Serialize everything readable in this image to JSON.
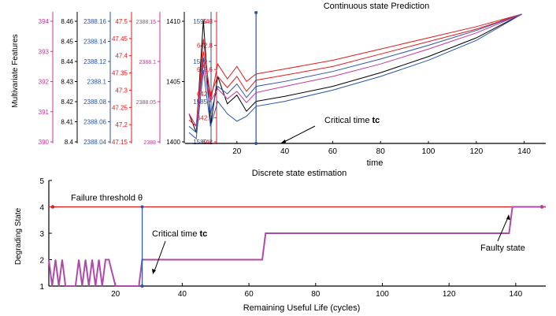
{
  "chart_data": [
    {
      "type": "line",
      "title": "Continuous state Prediction",
      "xlabel": "time",
      "ylabel": "Multivariate Features",
      "xlim": [
        0,
        149
      ],
      "x_ticks": [
        "20",
        "40",
        "60",
        "80",
        "100",
        "120",
        "140"
      ],
      "y_axes": [
        {
          "color": "#cc3399",
          "ticks": [
            "394",
            "393",
            "392",
            "391",
            "390"
          ]
        },
        {
          "color": "#000000",
          "ticks": [
            "8.46",
            "8.45",
            "8.44",
            "8.43",
            "8.42",
            "8.41",
            "8.4"
          ]
        },
        {
          "color": "#2a54a8",
          "ticks": [
            "2388.16",
            "2388.14",
            "2388.12",
            "2388.1",
            "2388.08",
            "2388.06",
            "2388.04"
          ]
        },
        {
          "color": "#e01b1b",
          "ticks": [
            "47.5",
            "47.45",
            "47.4",
            "47.35",
            "47.3",
            "47.25",
            "47.2",
            "47.15"
          ]
        },
        {
          "color": "#cc3399",
          "ticks": [
            "2388.15",
            "2388.1",
            "2388.05",
            "2388"
          ]
        },
        {
          "color": "#000000",
          "ticks": [
            "1410",
            "1405",
            "1400"
          ]
        },
        {
          "color": "#2a54a8",
          "ticks": [
            "1595",
            "1590",
            "1585",
            "1580"
          ]
        },
        {
          "color": "#e01b1b",
          "ticks": [
            "643",
            "642.8",
            "642.6",
            "642.4",
            "642.2",
            "642"
          ]
        }
      ],
      "critical_time": 28,
      "converge_x": 139,
      "series": [
        {
          "color": "#000000",
          "x": [
            0,
            3,
            6,
            9,
            12,
            16,
            20,
            24,
            28,
            40,
            60,
            80,
            100,
            120,
            139
          ],
          "y": [
            0.2,
            0.05,
            0.95,
            0.1,
            0.5,
            0.28,
            0.35,
            0.22,
            0.3,
            0.34,
            0.42,
            0.53,
            0.66,
            0.81,
            1.0
          ]
        },
        {
          "color": "#e01b1b",
          "x": [
            0,
            3,
            6,
            9,
            12,
            16,
            20,
            24,
            28,
            40,
            60,
            80,
            100,
            120,
            139
          ],
          "y": [
            0.15,
            0.1,
            0.8,
            0.3,
            0.6,
            0.48,
            0.58,
            0.46,
            0.52,
            0.56,
            0.63,
            0.72,
            0.81,
            0.9,
            1.0
          ]
        },
        {
          "color": "#e01b1b",
          "x": [
            0,
            3,
            6,
            9,
            12,
            16,
            20,
            24,
            28,
            40,
            60,
            80,
            100,
            120,
            139
          ],
          "y": [
            0.2,
            0.1,
            0.7,
            0.35,
            0.5,
            0.41,
            0.5,
            0.38,
            0.47,
            0.51,
            0.58,
            0.68,
            0.78,
            0.88,
            1.0
          ]
        },
        {
          "color": "#2a54a8",
          "x": [
            0,
            3,
            6,
            9,
            12,
            16,
            20,
            24,
            28,
            40,
            60,
            80,
            100,
            120,
            139
          ],
          "y": [
            0.1,
            0.05,
            0.65,
            0.2,
            0.42,
            0.36,
            0.44,
            0.33,
            0.42,
            0.46,
            0.54,
            0.64,
            0.75,
            0.87,
            1.0
          ]
        },
        {
          "color": "#cc3399",
          "x": [
            0,
            3,
            6,
            9,
            12,
            16,
            20,
            24,
            28,
            40,
            60,
            80,
            100,
            120,
            139
          ],
          "y": [
            0.2,
            0.1,
            0.6,
            0.3,
            0.4,
            0.32,
            0.38,
            0.29,
            0.37,
            0.42,
            0.5,
            0.6,
            0.72,
            0.85,
            1.0
          ]
        },
        {
          "color": "#2a54a8",
          "x": [
            0,
            3,
            6,
            9,
            12,
            16,
            20,
            24,
            28,
            40,
            60,
            80,
            100,
            120,
            139
          ],
          "y": [
            0.05,
            0.0,
            0.55,
            0.1,
            0.3,
            0.2,
            0.14,
            0.18,
            0.26,
            0.3,
            0.39,
            0.5,
            0.63,
            0.79,
            1.0
          ]
        }
      ],
      "annotations": {
        "critical_time": "Critical time",
        "critical_time_bold": "tc"
      }
    },
    {
      "type": "line",
      "title": "Discrete state estimation",
      "xlabel": "Remaining Useful Life (cycles)",
      "ylabel": "Degrading State",
      "xlim": [
        0,
        149
      ],
      "ylim": [
        1,
        5
      ],
      "x_ticks": [
        20,
        40,
        60,
        80,
        100,
        120,
        140
      ],
      "y_ticks": [
        1,
        2,
        3,
        4,
        5
      ],
      "threshold": {
        "value": 4,
        "label": "Failure threshold",
        "symbol": "θ",
        "color": "#e01b1b"
      },
      "critical_time": 28,
      "series": [
        {
          "name": "Degrading state",
          "color": "#b04aa8",
          "x": [
            0,
            1,
            2,
            3,
            4,
            5,
            6,
            7,
            8,
            9,
            10,
            11,
            12,
            13,
            14,
            15,
            16,
            17,
            18,
            20,
            22,
            24,
            25,
            26,
            27,
            28,
            29,
            30,
            60,
            64,
            65,
            138,
            139,
            149
          ],
          "y": [
            2,
            1,
            2,
            1,
            2,
            1,
            1,
            1,
            1,
            2,
            1,
            2,
            1,
            2,
            1,
            2,
            1,
            2,
            2,
            1,
            1,
            1,
            1,
            1,
            1,
            2,
            2,
            2,
            2,
            2,
            3,
            3,
            4,
            4
          ]
        }
      ],
      "annotations": {
        "critical_time": "Critical time",
        "critical_time_bold": "tc",
        "faulty_state": "Faulty state"
      }
    }
  ]
}
